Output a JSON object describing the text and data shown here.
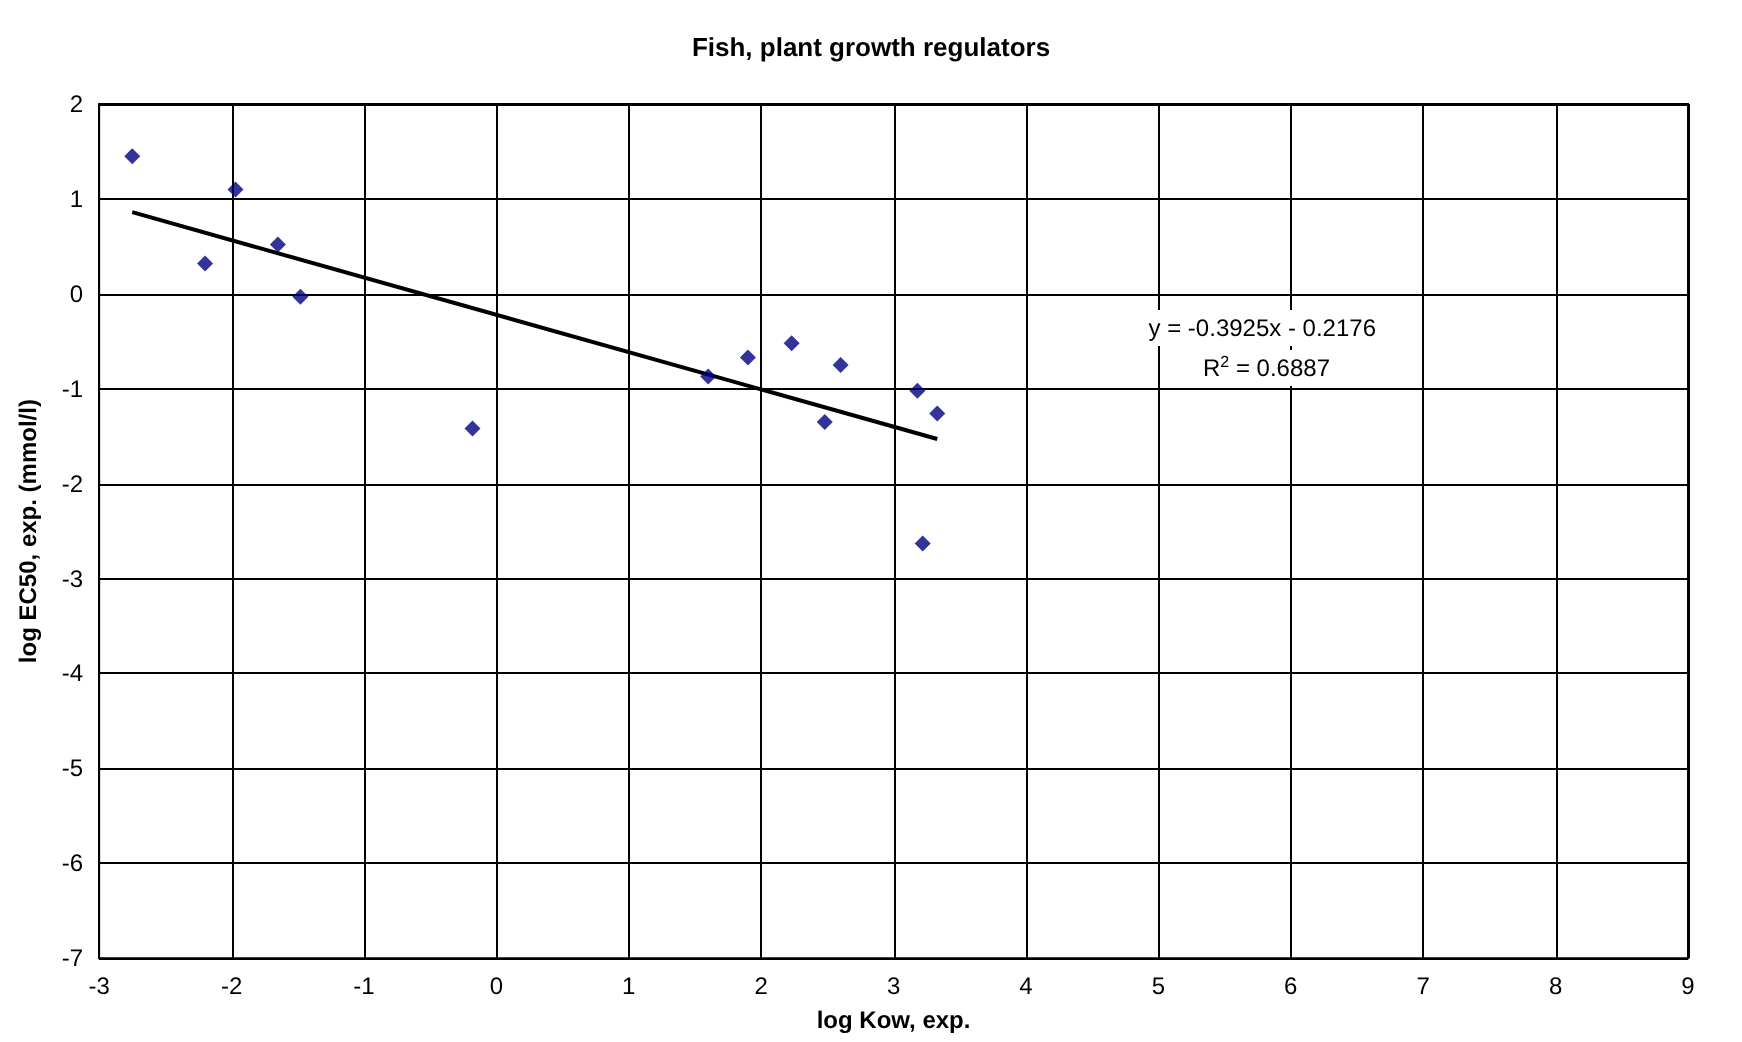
{
  "chart_data": {
    "type": "scatter",
    "title": "Fish, plant growth regulators",
    "xlabel": "log Kow, exp.",
    "ylabel": "log EC50, exp. (mmol/l)",
    "series": [
      {
        "color": "#000080",
        "marker": "diamond",
        "x": [
          -2.75,
          -2.2,
          -1.97,
          -1.65,
          -1.48,
          -0.18,
          1.6,
          1.9,
          2.23,
          2.48,
          2.6,
          3.18,
          3.22,
          3.33
        ],
        "values": [
          1.45,
          0.32,
          1.1,
          0.52,
          -0.03,
          -1.42,
          -0.87,
          -0.67,
          -0.52,
          -1.35,
          -0.75,
          -1.02,
          -2.63,
          -1.26
        ]
      },
      {
        "type": "line",
        "color": "#000000",
        "marker": "none",
        "x": [
          -2.75,
          3.33
        ],
        "values": [
          0.86,
          -1.53
        ]
      }
    ],
    "xlim": [
      -3,
      9
    ],
    "xticks": [
      -3,
      -2,
      -1,
      0,
      1,
      2,
      3,
      4,
      5,
      6,
      7,
      8,
      9
    ],
    "ylim": [
      -7,
      2
    ],
    "yticks": [
      -7,
      -6,
      -5,
      -4,
      -3,
      -2,
      -1,
      0,
      1,
      2
    ],
    "grid": true,
    "annotations": [
      "y = -0.3925x - 0.2176",
      "R$^{2}$ = 0.6887"
    ]
  }
}
